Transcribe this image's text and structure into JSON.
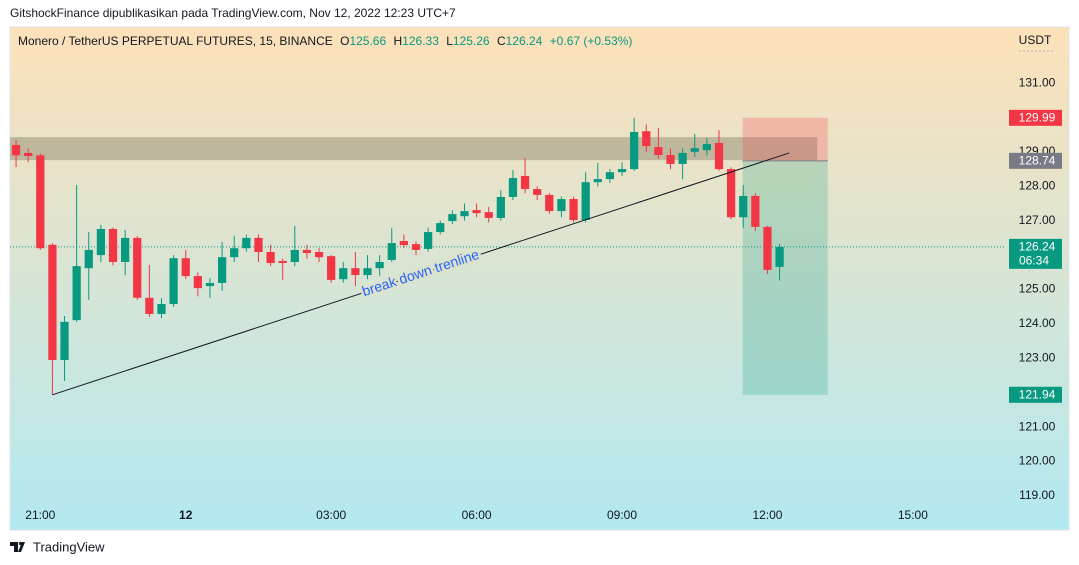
{
  "header": {
    "attribution": "GitshockFinance dipublikasikan pada TradingView.com, Nov 12, 2022 12:23 UTC+7"
  },
  "footer": {
    "brand": "TradingView"
  },
  "chart_data": {
    "type": "candlestick",
    "symbol": "Monero / TetherUS PERPETUAL FUTURES, 15, BINANCE",
    "ohlc_labels": [
      "O",
      "H",
      "L",
      "C"
    ],
    "change": "+0.67 (+0.53%)",
    "currency": "USDT",
    "up_color": "#089981",
    "down_color": "#f23645",
    "open": [
      129.2,
      128.97,
      128.9,
      126.3,
      122.95,
      124.11,
      125.62,
      126.0,
      126.76,
      125.8,
      126.5,
      124.76,
      124.29,
      124.58,
      125.91,
      125.39,
      125.1,
      125.19,
      125.94,
      126.2,
      126.5,
      126.09,
      125.83,
      125.8,
      126.15,
      126.09,
      125.97,
      125.3,
      125.62,
      125.42,
      125.62,
      125.86,
      126.41,
      126.32,
      126.18,
      126.67,
      126.99,
      127.13,
      127.31,
      127.25,
      127.08,
      127.69,
      128.3,
      127.92,
      127.75,
      127.28,
      127.63,
      127.02,
      128.12,
      128.21,
      128.41,
      128.5,
      129.6,
      129.14,
      128.91,
      128.65,
      129.0,
      129.05,
      129.26,
      128.5,
      127.1,
      127.72,
      126.82,
      125.66
    ],
    "high": [
      129.35,
      129.1,
      128.95,
      126.35,
      124.23,
      128.04,
      126.67,
      126.88,
      126.8,
      126.73,
      126.55,
      125.71,
      124.75,
      126.0,
      126.15,
      125.5,
      125.33,
      126.38,
      126.56,
      126.6,
      126.6,
      126.3,
      125.9,
      126.85,
      126.3,
      126.2,
      126.0,
      125.8,
      126.09,
      126.0,
      126.0,
      126.79,
      126.6,
      126.4,
      126.8,
      127.0,
      127.3,
      127.5,
      127.5,
      127.4,
      127.89,
      128.47,
      128.82,
      128.0,
      127.8,
      127.7,
      127.7,
      128.41,
      128.68,
      128.5,
      128.7,
      129.99,
      129.8,
      129.7,
      129.1,
      129.1,
      129.52,
      129.4,
      129.63,
      128.55,
      128.04,
      127.8,
      126.85,
      126.33
    ],
    "low": [
      128.56,
      128.7,
      126.15,
      121.94,
      122.34,
      124.06,
      124.7,
      125.8,
      125.7,
      125.42,
      124.7,
      124.2,
      124.17,
      124.5,
      125.3,
      124.8,
      124.76,
      124.96,
      125.8,
      126.1,
      125.8,
      125.68,
      125.28,
      125.68,
      125.9,
      125.8,
      125.2,
      125.2,
      125.1,
      125.3,
      125.4,
      125.8,
      126.2,
      126.0,
      126.1,
      126.6,
      126.9,
      127.0,
      127.1,
      126.95,
      127.0,
      127.6,
      127.8,
      127.6,
      127.2,
      127.1,
      126.95,
      126.95,
      128.0,
      128.1,
      128.3,
      128.45,
      129.0,
      128.8,
      128.5,
      128.21,
      128.85,
      128.9,
      128.45,
      127.05,
      126.79,
      126.7,
      125.45,
      125.26
    ],
    "close": [
      128.9,
      128.88,
      126.2,
      122.95,
      124.06,
      125.68,
      126.15,
      126.76,
      125.8,
      126.5,
      124.76,
      124.29,
      124.58,
      125.91,
      125.39,
      125.04,
      125.19,
      125.94,
      126.2,
      126.5,
      126.09,
      125.77,
      125.77,
      126.15,
      126.06,
      125.94,
      125.28,
      125.62,
      125.42,
      125.62,
      125.8,
      126.35,
      126.29,
      126.15,
      126.67,
      126.93,
      127.19,
      127.28,
      127.22,
      127.08,
      127.69,
      128.24,
      127.92,
      127.75,
      127.28,
      127.63,
      127.02,
      128.12,
      128.21,
      128.41,
      128.5,
      129.58,
      129.17,
      128.91,
      128.65,
      128.97,
      129.11,
      129.23,
      128.5,
      127.1,
      127.72,
      126.82,
      125.57,
      126.24
    ],
    "countdown": "06:34",
    "xlim": [
      -0.5,
      81.6
    ],
    "xticks": [
      {
        "value": 2,
        "label": "21:00"
      },
      {
        "value": 14,
        "label": "12"
      },
      {
        "value": 26,
        "label": "03:00"
      },
      {
        "value": 38,
        "label": "06:00"
      },
      {
        "value": 50,
        "label": "09:00"
      },
      {
        "value": 62,
        "label": "12:00"
      },
      {
        "value": 74,
        "label": "15:00"
      }
    ],
    "ylim": [
      118.01,
      132.63
    ],
    "yticks": [
      {
        "value": 119,
        "label": "119.00"
      },
      {
        "value": 120,
        "label": "120.00"
      },
      {
        "value": 121,
        "label": "121.00"
      },
      {
        "value": 122,
        "label": "122.00"
      },
      {
        "value": 123,
        "label": "123.00"
      },
      {
        "value": 124,
        "label": "124.00"
      },
      {
        "value": 125,
        "label": "125.00"
      },
      {
        "value": 126,
        "label": "126.00"
      },
      {
        "value": 127,
        "label": "127.00"
      },
      {
        "value": 128,
        "label": "128.00"
      },
      {
        "value": 129,
        "label": "129.00"
      },
      {
        "value": 130,
        "label": "130.00"
      },
      {
        "value": 131,
        "label": "131.00"
      }
    ],
    "zone": {
      "from": 128.76,
      "to": 129.43,
      "x_end": 66.1,
      "color": "#a09a80"
    },
    "position": {
      "x_start": 59.96,
      "x_end": 66.97,
      "stop": 129.99,
      "entry": 128.74,
      "target": 121.94,
      "stop_color": "#f23645",
      "entry_color": "#787b86",
      "target_color": "#089981"
    },
    "trendline": {
      "start": [
        3,
        121.94
      ],
      "end": [
        63.8,
        128.97
      ],
      "label": "break down trenline",
      "label_color": "#2962ff"
    }
  }
}
